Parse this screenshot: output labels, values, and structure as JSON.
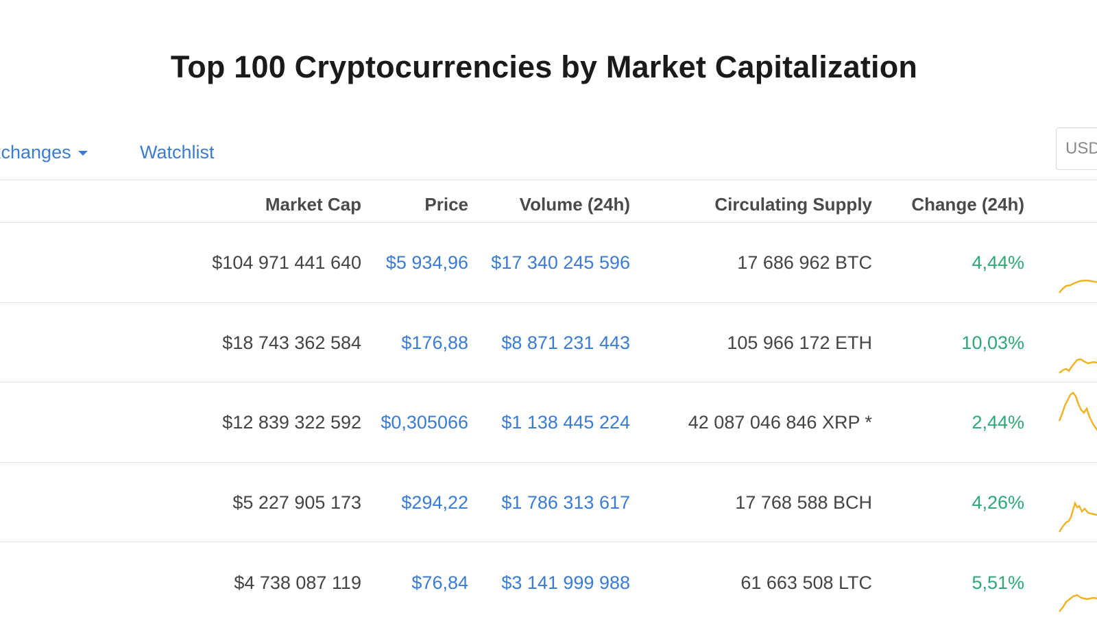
{
  "page": {
    "title": "Top 100 Cryptocurrencies by Market Capitalization"
  },
  "nav": {
    "exchanges": "xchanges",
    "watchlist": "Watchlist"
  },
  "currency_select": {
    "value": "USD"
  },
  "table": {
    "headers": {
      "market_cap": "Market Cap",
      "price": "Price",
      "volume": "Volume (24h)",
      "supply": "Circulating Supply",
      "change": "Change (24h)"
    },
    "rows": [
      {
        "market_cap": "$104 971 441 640",
        "price": "$5 934,96",
        "volume": "$17 340 245 596",
        "supply": "17 686 962 BTC",
        "change": "4,44%"
      },
      {
        "market_cap": "$18 743 362 584",
        "price": "$176,88",
        "volume": "$8 871 231 443",
        "supply": "105 966 172 ETH",
        "change": "10,03%"
      },
      {
        "market_cap": "$12 839 322 592",
        "price": "$0,305066",
        "volume": "$1 138 445 224",
        "supply": "42 087 046 846 XRP *",
        "change": "2,44%"
      },
      {
        "market_cap": "$5 227 905 173",
        "price": "$294,22",
        "volume": "$1 786 313 617",
        "supply": "17 768 588 BCH",
        "change": "4,26%"
      },
      {
        "market_cap": "$4 738 087 119",
        "price": "$76,84",
        "volume": "$3 141 999 988",
        "supply": "61 663 508 LTC",
        "change": "5,51%"
      }
    ]
  },
  "colors": {
    "link": "#3a7bd5",
    "positive": "#2ea877",
    "sparkline": "#f0b323"
  }
}
